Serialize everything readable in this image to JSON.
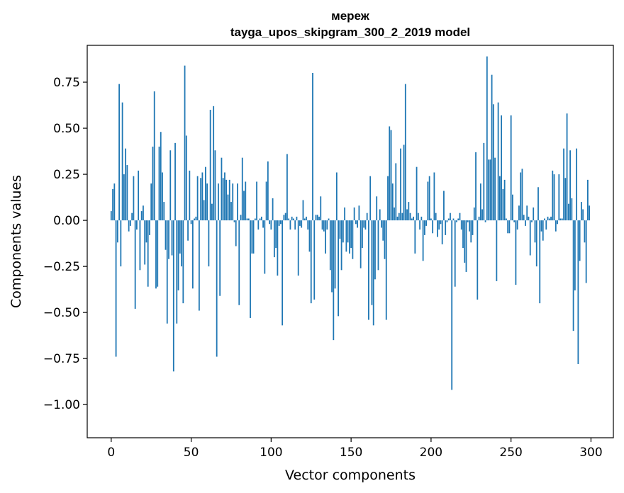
{
  "chart_data": {
    "type": "bar",
    "title_line1": "мереж",
    "title_line2": "tayga_upos_skipgram_300_2_2019 model",
    "xlabel": "Vector components",
    "ylabel": "Components values",
    "xlim": [
      -15,
      314
    ],
    "ylim": [
      -1.18,
      0.95
    ],
    "xticks": [
      0,
      50,
      100,
      150,
      200,
      250,
      300
    ],
    "yticks": [
      -1.0,
      -0.75,
      -0.5,
      -0.25,
      0.0,
      0.25,
      0.5,
      0.75
    ],
    "ytick_labels": [
      "−1.00",
      "−0.75",
      "−0.50",
      "−0.25",
      "0.00",
      "0.25",
      "0.50",
      "0.75"
    ],
    "bar_color": "#1f77b4",
    "x_start": 0,
    "values": [
      0.05,
      0.17,
      0.2,
      -0.74,
      -0.12,
      0.74,
      -0.25,
      0.64,
      0.25,
      0.39,
      0.3,
      -0.06,
      -0.03,
      0.04,
      0.24,
      -0.48,
      -0.05,
      0.27,
      -0.27,
      0.05,
      0.08,
      -0.24,
      -0.12,
      -0.36,
      -0.08,
      0.2,
      0.4,
      0.7,
      -0.37,
      -0.36,
      0.4,
      0.48,
      0.26,
      0.1,
      -0.16,
      -0.56,
      -0.21,
      0.38,
      -0.19,
      -0.82,
      0.42,
      -0.56,
      -0.38,
      -0.18,
      -0.25,
      -0.45,
      0.84,
      0.46,
      -0.11,
      0.27,
      -0.02,
      -0.37,
      0.01,
      0.02,
      0.24,
      -0.49,
      0.23,
      0.26,
      0.11,
      0.29,
      0.2,
      -0.25,
      0.6,
      0.09,
      0.62,
      0.38,
      -0.74,
      0.2,
      -0.41,
      0.34,
      0.23,
      0.26,
      0.22,
      0.14,
      0.22,
      0.1,
      0.2,
      -0.01,
      -0.14,
      0.2,
      -0.46,
      0.03,
      0.34,
      0.16,
      0.21,
      0.01,
      0.01,
      -0.53,
      -0.18,
      -0.18,
      0.01,
      0.21,
      -0.05,
      0.01,
      0.02,
      -0.04,
      -0.29,
      0.21,
      0.32,
      -0.02,
      -0.05,
      0.12,
      -0.2,
      -0.15,
      -0.3,
      -0.03,
      -0.02,
      -0.57,
      0.03,
      0.04,
      0.36,
      0.01,
      -0.05,
      0.02,
      0.01,
      -0.05,
      0.02,
      -0.3,
      -0.03,
      -0.04,
      0.11,
      0.01,
      0.02,
      -0.05,
      -0.17,
      -0.45,
      0.8,
      -0.43,
      0.03,
      0.03,
      0.02,
      0.13,
      -0.05,
      -0.06,
      -0.18,
      -0.05,
      0.01,
      -0.27,
      -0.39,
      -0.65,
      -0.37,
      0.26,
      -0.52,
      -0.1,
      -0.27,
      -0.12,
      0.07,
      -0.17,
      -0.12,
      -0.18,
      -0.15,
      -0.21,
      0.07,
      -0.02,
      -0.04,
      0.08,
      -0.26,
      -0.15,
      -0.04,
      -0.05,
      0.04,
      -0.54,
      0.24,
      -0.46,
      -0.57,
      -0.32,
      0.13,
      -0.27,
      0.06,
      -0.04,
      -0.11,
      -0.21,
      -0.54,
      0.24,
      0.51,
      0.49,
      0.2,
      0.07,
      0.31,
      0.02,
      0.04,
      0.39,
      0.04,
      0.41,
      0.74,
      0.06,
      0.1,
      0.04,
      0.01,
      0.02,
      -0.18,
      0.29,
      0.04,
      -0.05,
      0.02,
      -0.22,
      -0.08,
      -0.03,
      0.21,
      0.24,
      0.01,
      -0.07,
      0.26,
      0.04,
      -0.09,
      -0.05,
      -0.02,
      -0.13,
      0.16,
      -0.08,
      -0.01,
      0.01,
      0.04,
      -0.92,
      0.01,
      -0.36,
      -0.01,
      0.01,
      0.04,
      -0.05,
      -0.15,
      -0.23,
      -0.28,
      -0.01,
      -0.06,
      -0.12,
      -0.08,
      0.07,
      0.37,
      -0.43,
      0.02,
      0.2,
      0.06,
      0.42,
      -0.01,
      0.89,
      0.33,
      0.33,
      0.79,
      0.63,
      0.34,
      -0.33,
      0.64,
      0.24,
      0.57,
      0.17,
      0.22,
      0.01,
      -0.07,
      -0.07,
      0.57,
      0.14,
      -0.01,
      -0.35,
      -0.05,
      0.08,
      0.26,
      0.28,
      0.03,
      -0.03,
      0.08,
      0.02,
      -0.19,
      -0.01,
      0.07,
      -0.12,
      -0.25,
      0.18,
      -0.45,
      -0.06,
      -0.11,
      0.01,
      -0.05,
      0.02,
      0.01,
      0.02,
      0.27,
      0.25,
      -0.06,
      -0.02,
      0.25,
      0.01,
      0.01,
      0.39,
      0.23,
      0.58,
      0.09,
      0.38,
      0.12,
      -0.6,
      -0.38,
      0.39,
      -0.78,
      -0.22,
      0.1,
      0.06,
      -0.12,
      -0.34,
      0.22,
      0.08
    ]
  }
}
